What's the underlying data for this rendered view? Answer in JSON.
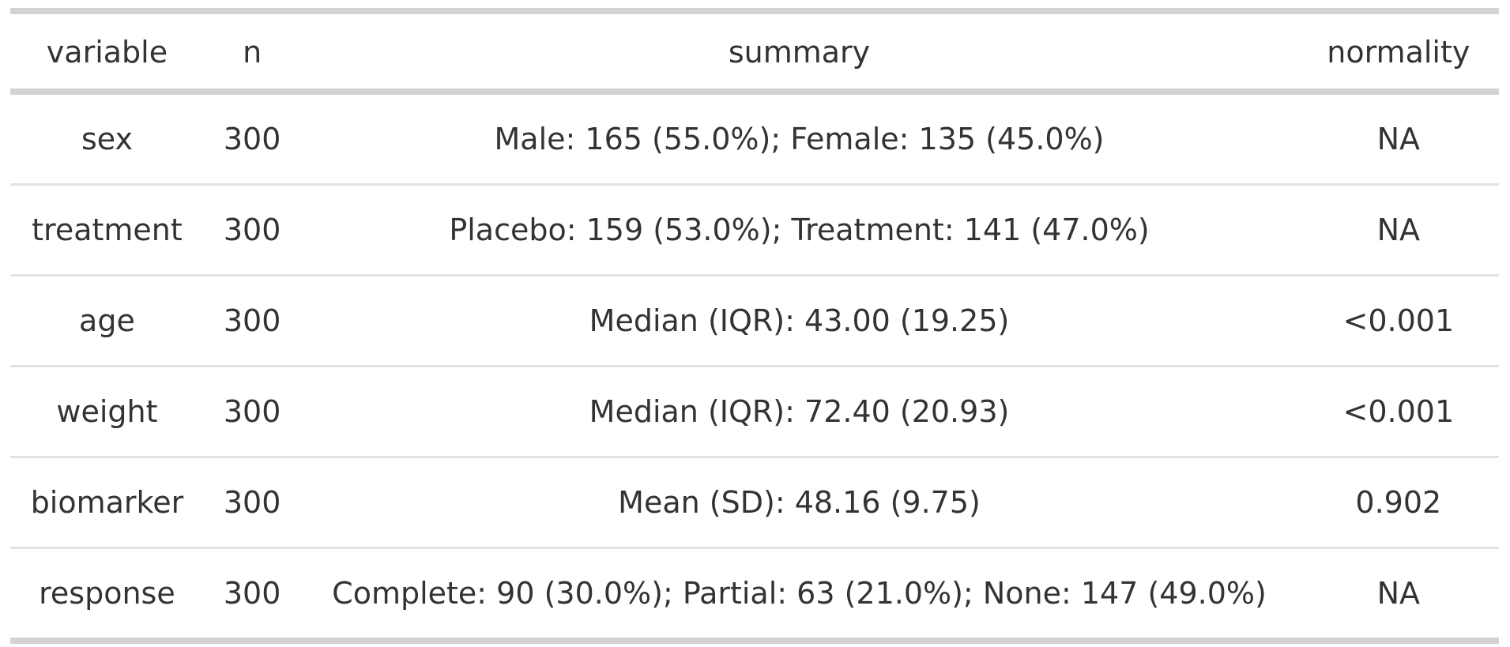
{
  "chart_data": {
    "type": "table",
    "title": "",
    "columns": [
      "variable",
      "n",
      "summary",
      "normality"
    ],
    "rows": [
      [
        "sex",
        300,
        "Male: 165 (55.0%); Female: 135 (45.0%)",
        "NA"
      ],
      [
        "treatment",
        300,
        "Placebo: 159 (53.0%); Treatment: 141 (47.0%)",
        "NA"
      ],
      [
        "age",
        300,
        "Median (IQR): 43.00 (19.25)",
        "<0.001"
      ],
      [
        "weight",
        300,
        "Median (IQR): 72.40 (20.93)",
        "<0.001"
      ],
      [
        "biomarker",
        300,
        "Mean (SD): 48.16 (9.75)",
        "0.902"
      ],
      [
        "response",
        300,
        "Complete: 90 (30.0%); Partial: 63 (21.0%); None: 147 (49.0%)",
        "NA"
      ]
    ]
  },
  "table": {
    "headers": [
      "variable",
      "n",
      "summary",
      "normality"
    ],
    "rows": [
      {
        "variable": "sex",
        "n": "300",
        "summary": "Male: 165 (55.0%); Female: 135 (45.0%)",
        "normality": "NA"
      },
      {
        "variable": "treatment",
        "n": "300",
        "summary": "Placebo: 159 (53.0%); Treatment: 141 (47.0%)",
        "normality": "NA"
      },
      {
        "variable": "age",
        "n": "300",
        "summary": "Median (IQR): 43.00 (19.25)",
        "normality": "<0.001"
      },
      {
        "variable": "weight",
        "n": "300",
        "summary": "Median (IQR): 72.40 (20.93)",
        "normality": "<0.001"
      },
      {
        "variable": "biomarker",
        "n": "300",
        "summary": "Mean (SD): 48.16 (9.75)",
        "normality": "0.902"
      },
      {
        "variable": "response",
        "n": "300",
        "summary": "Complete: 90 (30.0%); Partial: 63 (21.0%); None: 147 (49.0%)",
        "normality": "NA"
      }
    ]
  },
  "colors": {
    "background": "#ffffff",
    "text": "#333333",
    "border_thick": "#d3d3d3",
    "border_thin": "#e2e2e2"
  }
}
